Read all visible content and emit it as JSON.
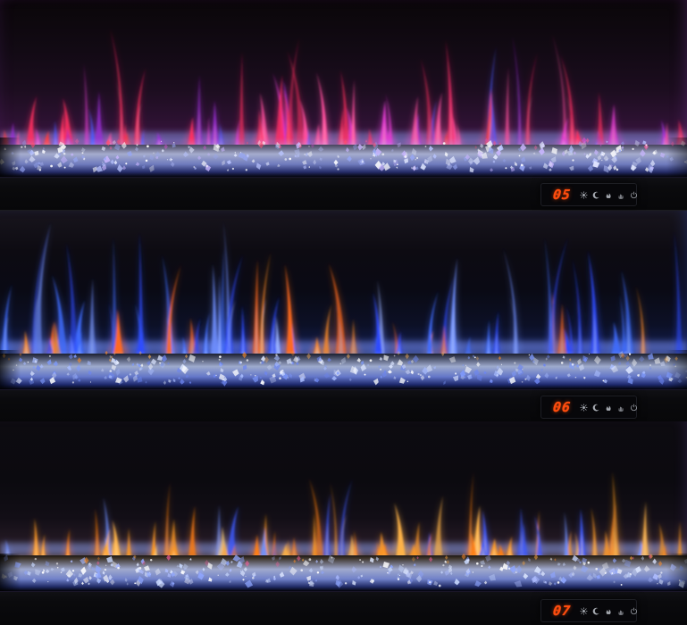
{
  "product": {
    "description_visible_text": "",
    "led_color": "#ff4d0e",
    "icon_color": "#c3c8d0"
  },
  "controls": {
    "icons": [
      "brightness-icon",
      "sleep-timer-icon",
      "flame-effect-icon",
      "heat-icon",
      "power-icon"
    ]
  },
  "panels": [
    {
      "display": {
        "value": "05"
      },
      "flames": {
        "count": 78,
        "min_h": 16,
        "max_h": 92,
        "tall_h": 138,
        "colors": [
          [
            "#ff2e5f",
            26
          ],
          [
            "#ff4f9e",
            20
          ],
          [
            "#e23bd0",
            16
          ],
          [
            "#9b2fd6",
            14
          ],
          [
            "#ff3838",
            12
          ],
          [
            "#4a58ff",
            12
          ]
        ],
        "light": "#ff9fc4"
      },
      "crystals": {
        "bright": "#cdd6ff",
        "mid": "#8d9cf0",
        "deep": "#3a47a8",
        "top_glow": "#b9a4ff",
        "bits": [
          "#ffffff",
          "#e2e8ff",
          "#b9c4ff",
          "#97a6f2",
          "#c9b6ff"
        ],
        "accents": [
          "#ff5f9e",
          "#d94fd1",
          "#ff4d6f"
        ]
      }
    },
    {
      "display": {
        "value": "06"
      },
      "flames": {
        "count": 70,
        "min_h": 20,
        "max_h": 118,
        "tall_h": 150,
        "colors": [
          [
            "#2e4bff",
            26
          ],
          [
            "#3f6dff",
            22
          ],
          [
            "#6f8fff",
            16
          ],
          [
            "#9db4ff",
            10
          ],
          [
            "#ff8c26",
            14
          ],
          [
            "#ff6a1f",
            12
          ]
        ],
        "light": "#bcd0ff"
      },
      "crystals": {
        "bright": "#c4d4ff",
        "mid": "#7f97ff",
        "deep": "#2f43b0",
        "top_glow": "#9db4ff",
        "bits": [
          "#ffffff",
          "#dce6ff",
          "#a9bdff",
          "#7f9bff",
          "#6d86f0"
        ],
        "accents": [
          "#ff8c26",
          "#ffb357"
        ]
      }
    },
    {
      "display": {
        "value": "07"
      },
      "flames": {
        "count": 74,
        "min_h": 14,
        "max_h": 64,
        "tall_h": 96,
        "colors": [
          [
            "#ff9a24",
            26
          ],
          [
            "#ffb347",
            20
          ],
          [
            "#ff7d12",
            18
          ],
          [
            "#ffd37a",
            8
          ],
          [
            "#3f5bff",
            16
          ],
          [
            "#6f8fff",
            12
          ]
        ],
        "light": "#ffdca6"
      },
      "crystals": {
        "bright": "#c6d2ff",
        "mid": "#8fa4ff",
        "deep": "#3548a8",
        "top_glow": "#ffd9a0",
        "bits": [
          "#ffffff",
          "#dce6ff",
          "#aebdff",
          "#8fa6ff",
          "#c9d9ff"
        ],
        "accents": [
          "#ffa83d",
          "#ff8c26",
          "#ff5f9e"
        ]
      }
    }
  ]
}
